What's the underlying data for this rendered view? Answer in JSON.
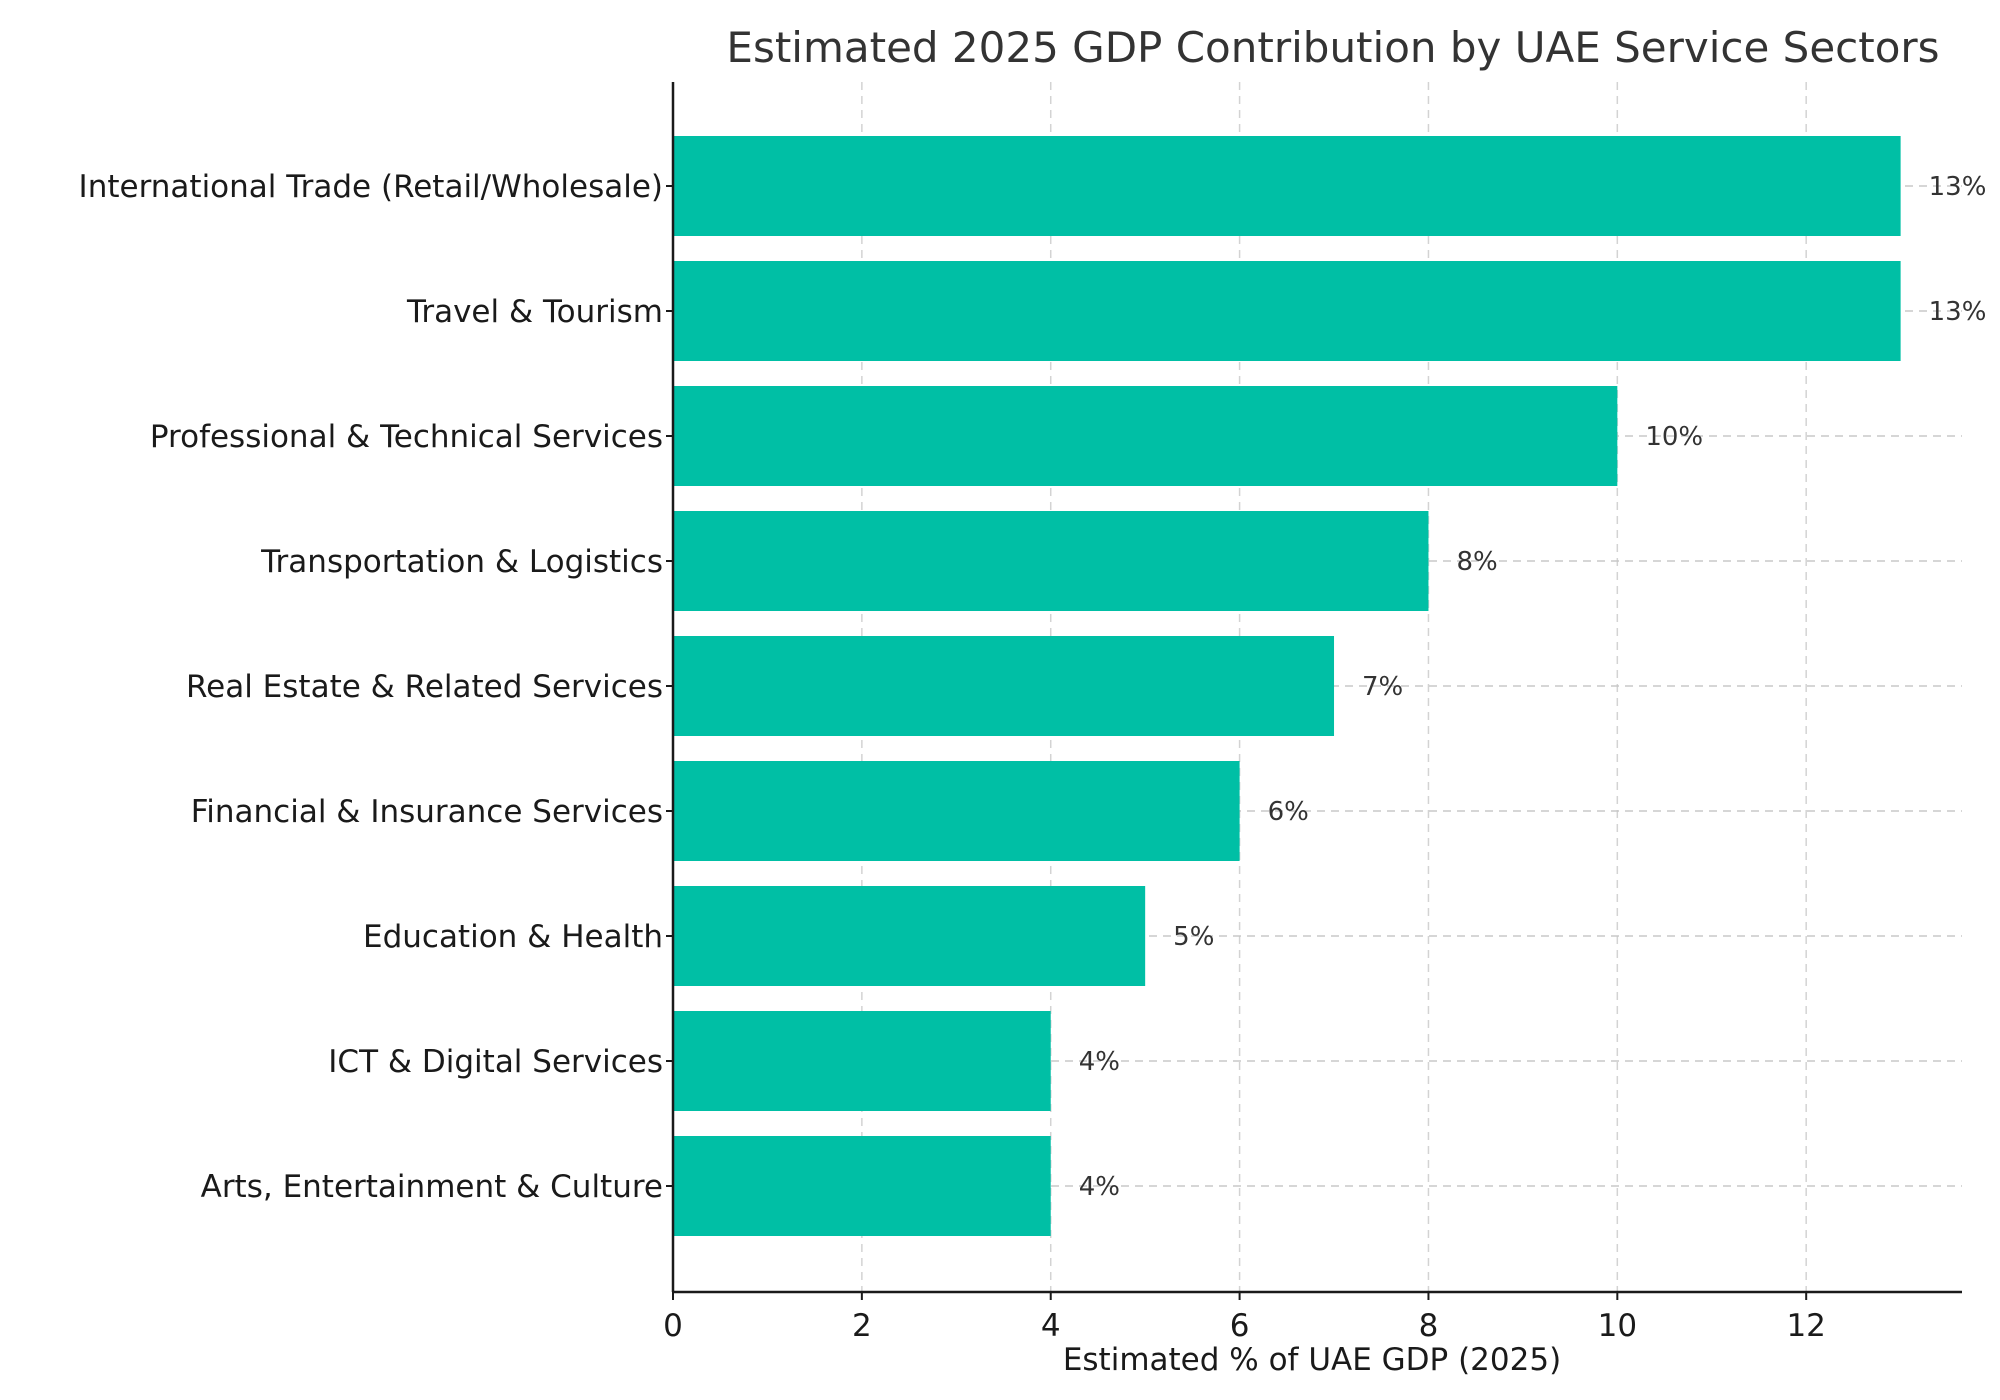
{
  "chart_data": {
    "type": "bar",
    "orientation": "horizontal",
    "title": "Estimated 2025 GDP Contribution by UAE Service Sectors",
    "xlabel": "Estimated % of UAE GDP (2025)",
    "ylabel": "",
    "xlim": [
      0,
      13.65
    ],
    "xticks": [
      0,
      2,
      4,
      6,
      8,
      10,
      12
    ],
    "grid": true,
    "bar_color": "#00BFA5",
    "categories": [
      "International Trade (Retail/Wholesale)",
      "Travel & Tourism",
      "Professional & Technical Services",
      "Transportation & Logistics",
      "Real Estate & Related Services",
      "Financial & Insurance Services",
      "Education & Health",
      "ICT & Digital Services",
      "Arts, Entertainment & Culture"
    ],
    "values": [
      13,
      13,
      10,
      8,
      7,
      6,
      5,
      4,
      4
    ],
    "data_labels": [
      "13%",
      "13%",
      "10%",
      "8%",
      "7%",
      "6%",
      "5%",
      "4%",
      "4%"
    ]
  }
}
